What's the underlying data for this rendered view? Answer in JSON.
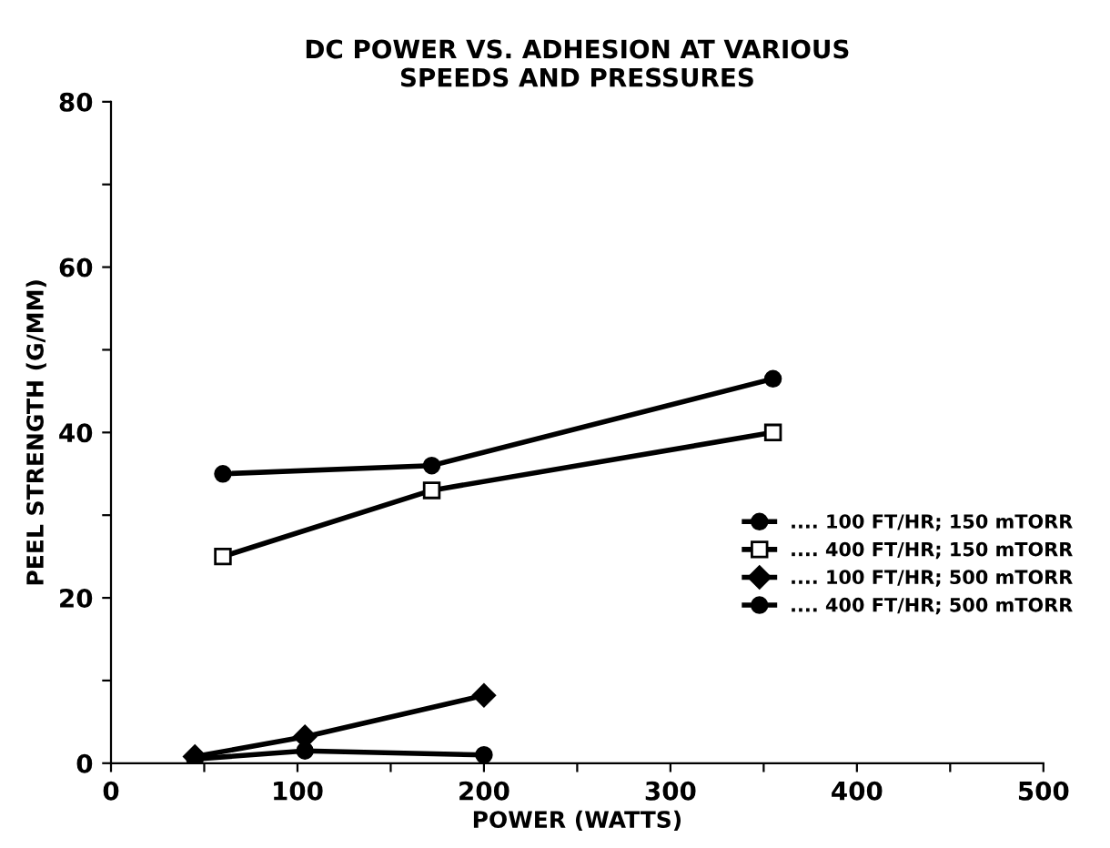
{
  "chart_data": {
    "type": "line",
    "title": "DC POWER VS. ADHESION AT VARIOUS\nSPEEDS AND PRESSURES",
    "xlabel": "POWER (WATTS)",
    "ylabel": "PEEL STRENGTH (G/MM)",
    "xlim": [
      0,
      500
    ],
    "ylim": [
      0,
      80
    ],
    "xticks": [
      0,
      {
        "value": 50,
        "label": null
      },
      100,
      {
        "value": 150,
        "label": null
      },
      200,
      {
        "value": 250,
        "label": null
      },
      300,
      {
        "value": 350,
        "label": null
      },
      400,
      {
        "value": 450,
        "label": null
      },
      500
    ],
    "yticks": [
      0,
      {
        "value": 10,
        "label": null
      },
      20,
      {
        "value": 30,
        "label": null
      },
      40,
      {
        "value": 50,
        "label": null
      },
      60,
      {
        "value": 70,
        "label": null
      },
      80
    ],
    "grid": false,
    "legend": "right",
    "line_style": "solid",
    "series": [
      {
        "name": ".... 100 FT/HR; 150 mTORR",
        "color": "#000000",
        "marker": "circle",
        "x": [
          60,
          172,
          355
        ],
        "values": [
          35,
          36,
          46.5
        ]
      },
      {
        "name": ".... 400 FT/HR; 150 mTORR",
        "color": "#000000",
        "marker": "square",
        "x": [
          60,
          172,
          355
        ],
        "values": [
          25,
          33,
          40
        ]
      },
      {
        "name": ".... 100 FT/HR; 500 mTORR",
        "color": "#000000",
        "marker": "diamond",
        "x": [
          45,
          104,
          200
        ],
        "values": [
          0.8,
          3.2,
          8.2
        ]
      },
      {
        "name": ".... 400 FT/HR; 500 mTORR",
        "color": "#000000",
        "marker": "circle",
        "x": [
          45,
          104,
          200
        ],
        "values": [
          0.5,
          1.5,
          1
        ]
      }
    ]
  }
}
